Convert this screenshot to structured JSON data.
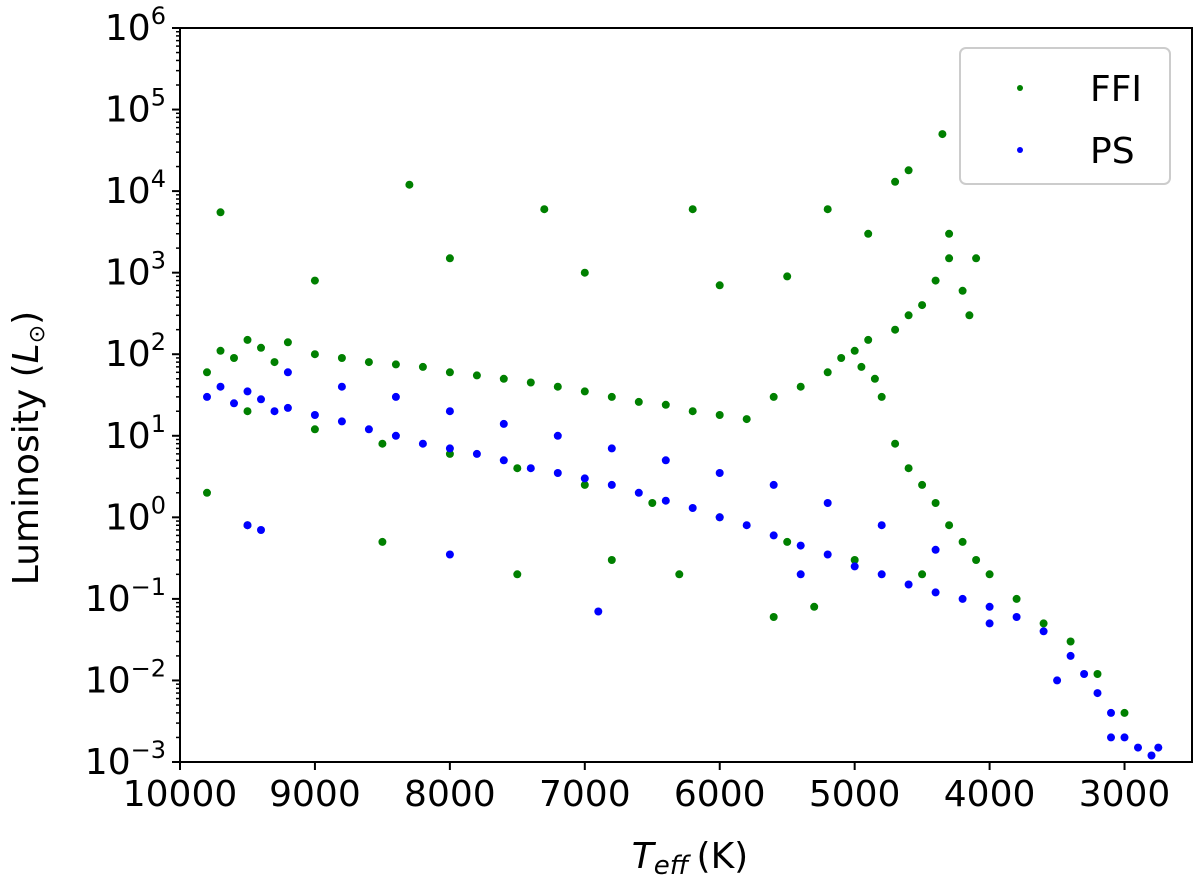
{
  "chart_data": {
    "type": "scatter",
    "title": "",
    "xlabel_main": "T",
    "xlabel_sub": "eff",
    "xlabel_unit": "(K)",
    "ylabel_prefix": "Luminosity (",
    "ylabel_symbol": "L",
    "ylabel_suffix": ")",
    "x_ticks": [
      10000,
      9000,
      8000,
      7000,
      6000,
      5000,
      4000,
      3000
    ],
    "x_tick_labels": [
      "10000",
      "9000",
      "8000",
      "7000",
      "6000",
      "5000",
      "4000",
      "3000"
    ],
    "xlim": [
      10000,
      2500
    ],
    "x_reversed": true,
    "y_scale": "log",
    "ylim": [
      0.001,
      1000000
    ],
    "y_ticks": [
      0.001,
      0.01,
      0.1,
      1,
      10,
      100,
      1000,
      10000,
      100000,
      1000000
    ],
    "y_tick_labels": [
      {
        "base": "10",
        "exp": "−3"
      },
      {
        "base": "10",
        "exp": "−2"
      },
      {
        "base": "10",
        "exp": "−1"
      },
      {
        "base": "10",
        "exp": "0"
      },
      {
        "base": "10",
        "exp": "1"
      },
      {
        "base": "10",
        "exp": "2"
      },
      {
        "base": "10",
        "exp": "3"
      },
      {
        "base": "10",
        "exp": "4"
      },
      {
        "base": "10",
        "exp": "5"
      },
      {
        "base": "10",
        "exp": "6"
      }
    ],
    "grid": false,
    "legend_position": "top-right",
    "series": [
      {
        "name": "FFI",
        "color": "#008000",
        "points": [
          [
            9800,
            60
          ],
          [
            9700,
            110
          ],
          [
            9600,
            90
          ],
          [
            9500,
            150
          ],
          [
            9400,
            120
          ],
          [
            9300,
            80
          ],
          [
            9200,
            140
          ],
          [
            9000,
            100
          ],
          [
            8800,
            90
          ],
          [
            8600,
            80
          ],
          [
            8400,
            75
          ],
          [
            8200,
            70
          ],
          [
            8000,
            60
          ],
          [
            7800,
            55
          ],
          [
            7600,
            50
          ],
          [
            7400,
            45
          ],
          [
            7200,
            40
          ],
          [
            7000,
            35
          ],
          [
            6800,
            30
          ],
          [
            6600,
            26
          ],
          [
            6400,
            24
          ],
          [
            6200,
            20
          ],
          [
            6000,
            18
          ],
          [
            5800,
            16
          ],
          [
            5600,
            30
          ],
          [
            5400,
            40
          ],
          [
            5200,
            60
          ],
          [
            5100,
            90
          ],
          [
            5000,
            110
          ],
          [
            4950,
            70
          ],
          [
            4900,
            150
          ],
          [
            4850,
            50
          ],
          [
            4800,
            30
          ],
          [
            4700,
            200
          ],
          [
            4600,
            300
          ],
          [
            4500,
            400
          ],
          [
            4400,
            800
          ],
          [
            4300,
            1500
          ],
          [
            4200,
            600
          ],
          [
            4150,
            300
          ],
          [
            4700,
            8
          ],
          [
            4600,
            4
          ],
          [
            4500,
            2.5
          ],
          [
            4400,
            1.5
          ],
          [
            4300,
            0.8
          ],
          [
            4200,
            0.5
          ],
          [
            4100,
            0.3
          ],
          [
            4000,
            0.2
          ],
          [
            9500,
            20
          ],
          [
            9000,
            12
          ],
          [
            8500,
            8
          ],
          [
            8000,
            6
          ],
          [
            7500,
            4
          ],
          [
            7000,
            2.5
          ],
          [
            6500,
            1.5
          ],
          [
            6000,
            1.0
          ],
          [
            5500,
            0.5
          ],
          [
            5000,
            0.3
          ],
          [
            4500,
            0.2
          ],
          [
            3800,
            0.1
          ],
          [
            3600,
            0.05
          ],
          [
            3400,
            0.03
          ],
          [
            3200,
            0.012
          ],
          [
            3000,
            0.004
          ],
          [
            9700,
            5500
          ],
          [
            8300,
            12000
          ],
          [
            7300,
            6000
          ],
          [
            6200,
            6000
          ],
          [
            5200,
            6000
          ],
          [
            4600,
            18000
          ],
          [
            4350,
            50000
          ],
          [
            4700,
            13000
          ],
          [
            9000,
            800
          ],
          [
            8000,
            1500
          ],
          [
            7000,
            1000
          ],
          [
            6000,
            700
          ],
          [
            5500,
            900
          ],
          [
            4900,
            3000
          ],
          [
            4300,
            3000
          ],
          [
            4100,
            1500
          ],
          [
            9800,
            2
          ],
          [
            9500,
            0.8
          ],
          [
            8500,
            0.5
          ],
          [
            7500,
            0.2
          ],
          [
            6800,
            0.3
          ],
          [
            6300,
            0.2
          ],
          [
            5600,
            0.06
          ],
          [
            5300,
            0.08
          ]
        ]
      },
      {
        "name": "PS",
        "color": "#0000ff",
        "points": [
          [
            9800,
            30
          ],
          [
            9700,
            40
          ],
          [
            9600,
            25
          ],
          [
            9500,
            35
          ],
          [
            9400,
            28
          ],
          [
            9300,
            20
          ],
          [
            9200,
            22
          ],
          [
            9000,
            18
          ],
          [
            8800,
            15
          ],
          [
            8600,
            12
          ],
          [
            8400,
            10
          ],
          [
            8200,
            8
          ],
          [
            8000,
            7
          ],
          [
            7800,
            6
          ],
          [
            7600,
            5
          ],
          [
            7400,
            4
          ],
          [
            7200,
            3.5
          ],
          [
            7000,
            3
          ],
          [
            6800,
            2.5
          ],
          [
            6600,
            2
          ],
          [
            6400,
            1.6
          ],
          [
            6200,
            1.3
          ],
          [
            6000,
            1.0
          ],
          [
            5800,
            0.8
          ],
          [
            5600,
            0.6
          ],
          [
            5400,
            0.45
          ],
          [
            5200,
            0.35
          ],
          [
            5000,
            0.25
          ],
          [
            4800,
            0.2
          ],
          [
            4600,
            0.15
          ],
          [
            4400,
            0.12
          ],
          [
            4200,
            0.1
          ],
          [
            4000,
            0.08
          ],
          [
            3800,
            0.06
          ],
          [
            3600,
            0.04
          ],
          [
            3400,
            0.02
          ],
          [
            3300,
            0.012
          ],
          [
            3200,
            0.007
          ],
          [
            3100,
            0.004
          ],
          [
            3000,
            0.002
          ],
          [
            2900,
            0.0015
          ],
          [
            2800,
            0.0012
          ],
          [
            9200,
            60
          ],
          [
            8800,
            40
          ],
          [
            8400,
            30
          ],
          [
            8000,
            20
          ],
          [
            7600,
            14
          ],
          [
            7200,
            10
          ],
          [
            6800,
            7
          ],
          [
            6400,
            5
          ],
          [
            6000,
            3.5
          ],
          [
            5600,
            2.5
          ],
          [
            5200,
            1.5
          ],
          [
            4800,
            0.8
          ],
          [
            4400,
            0.4
          ],
          [
            9500,
            0.8
          ],
          [
            9400,
            0.7
          ],
          [
            8000,
            0.35
          ],
          [
            6900,
            0.07
          ],
          [
            5400,
            0.2
          ],
          [
            4000,
            0.05
          ],
          [
            3500,
            0.01
          ],
          [
            3100,
            0.002
          ],
          [
            2750,
            0.0015
          ]
        ]
      }
    ]
  }
}
